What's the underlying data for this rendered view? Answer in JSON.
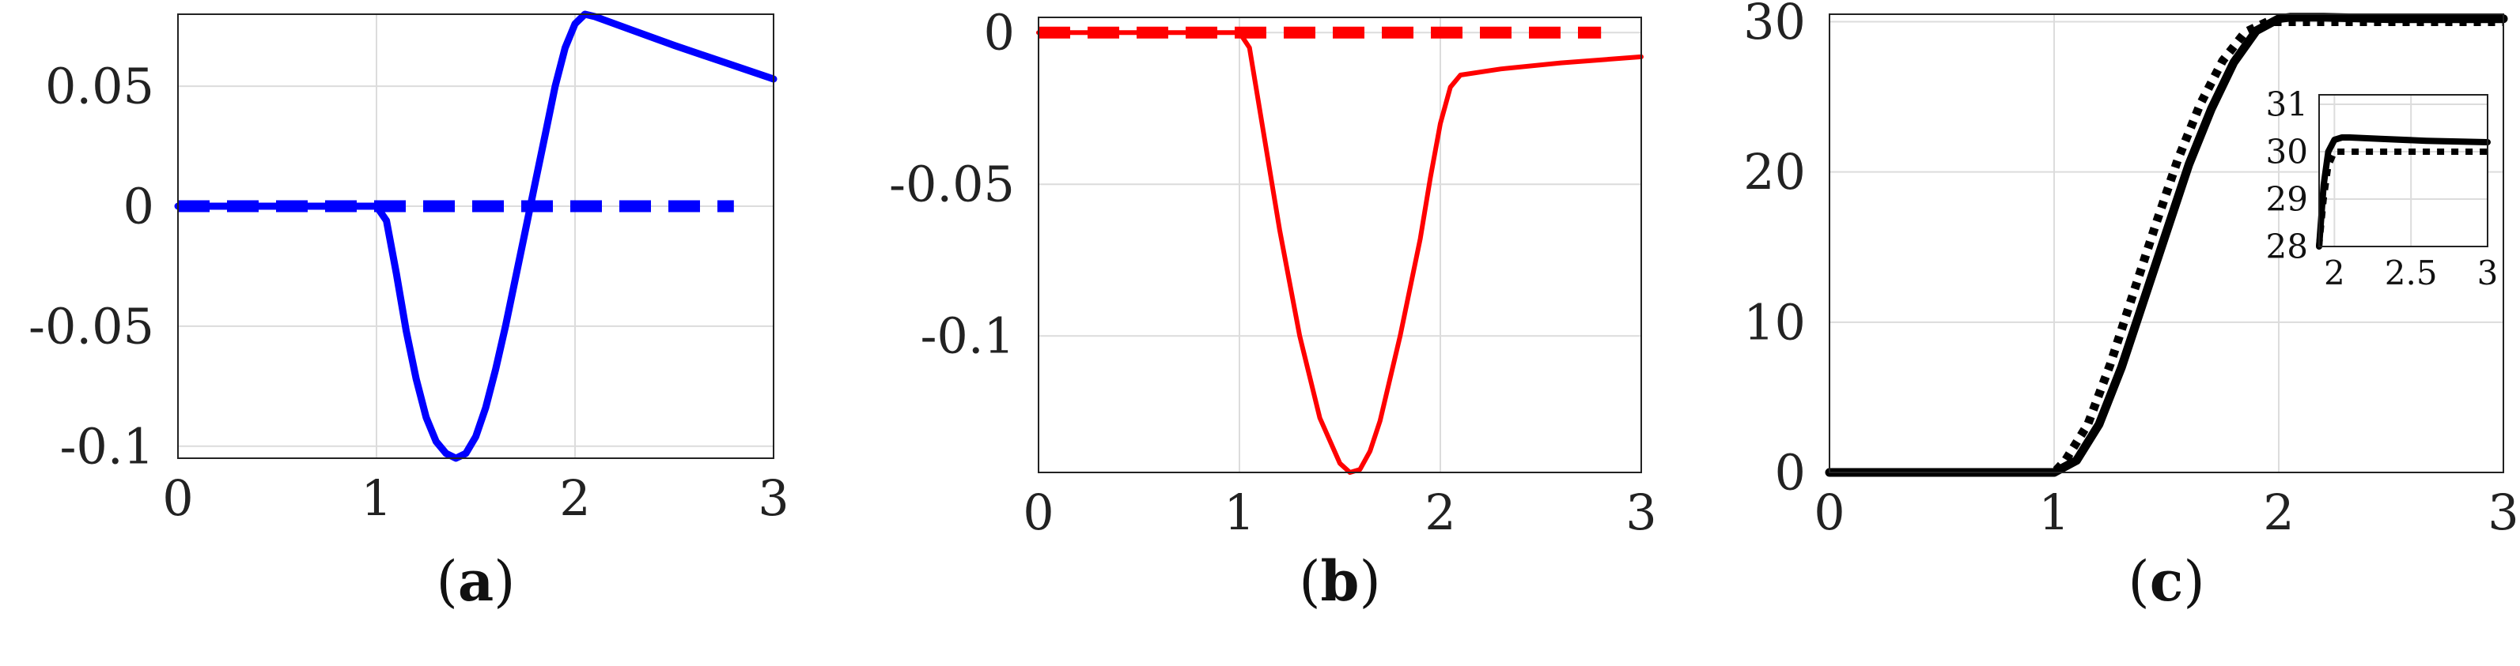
{
  "chart_data": [
    {
      "type": "line",
      "caption": {
        "open": "(",
        "letter": "a",
        "close": ")"
      },
      "xlim": [
        0,
        3
      ],
      "ylim": [
        -0.105,
        0.08
      ],
      "xticks": [
        0,
        1,
        2,
        3
      ],
      "xtick_labels": [
        "0",
        "1",
        "2",
        "3"
      ],
      "yticks": [
        -0.1,
        -0.05,
        0,
        0.05
      ],
      "ytick_labels": [
        "-0.1",
        "-0.05",
        "0",
        "0.05"
      ],
      "grid": true,
      "series": [
        {
          "style": "solid",
          "color": "#0000ff",
          "x": [
            0,
            0.5,
            1.0,
            1.05,
            1.1,
            1.15,
            1.2,
            1.25,
            1.3,
            1.35,
            1.4,
            1.45,
            1.5,
            1.55,
            1.6,
            1.65,
            1.7,
            1.75,
            1.8,
            1.85,
            1.9,
            1.95,
            2.0,
            2.05,
            2.1,
            2.3,
            2.5,
            2.75,
            3.0
          ],
          "y": [
            0,
            0,
            0,
            -0.006,
            -0.028,
            -0.052,
            -0.072,
            -0.088,
            -0.098,
            -0.103,
            -0.105,
            -0.103,
            -0.096,
            -0.084,
            -0.068,
            -0.05,
            -0.03,
            -0.01,
            0.01,
            0.03,
            0.05,
            0.066,
            0.076,
            0.08,
            0.079,
            0.073,
            0.067,
            0.06,
            0.053
          ]
        },
        {
          "style": "dashed",
          "color": "#0000ff",
          "x": [
            0,
            2.8
          ],
          "y": [
            0,
            0
          ]
        }
      ]
    },
    {
      "type": "line",
      "caption": {
        "open": "(",
        "letter": "b",
        "close": ")"
      },
      "xlim": [
        0,
        3
      ],
      "ylim": [
        -0.145,
        0.005
      ],
      "xticks": [
        0,
        1,
        2,
        3
      ],
      "xtick_labels": [
        "0",
        "1",
        "2",
        "3"
      ],
      "yticks": [
        -0.1,
        -0.05,
        0
      ],
      "ytick_labels": [
        "-0.1",
        "-0.05",
        "0"
      ],
      "grid": true,
      "series": [
        {
          "style": "solid",
          "color": "#ff0000",
          "x": [
            0,
            0.5,
            1.0,
            1.05,
            1.1,
            1.2,
            1.3,
            1.4,
            1.5,
            1.55,
            1.6,
            1.65,
            1.7,
            1.8,
            1.9,
            1.95,
            2.0,
            2.05,
            2.1,
            2.3,
            2.6,
            3.0
          ],
          "y": [
            0,
            0,
            0,
            -0.005,
            -0.025,
            -0.065,
            -0.1,
            -0.127,
            -0.142,
            -0.145,
            -0.144,
            -0.138,
            -0.128,
            -0.1,
            -0.068,
            -0.048,
            -0.03,
            -0.018,
            -0.014,
            -0.012,
            -0.01,
            -0.008
          ]
        },
        {
          "style": "dashed",
          "color": "#ff0000",
          "x": [
            0,
            2.8
          ],
          "y": [
            0,
            0
          ]
        }
      ]
    },
    {
      "type": "line",
      "caption": {
        "open": "(",
        "letter": "c",
        "close": ")"
      },
      "xlim": [
        0,
        3
      ],
      "ylim": [
        0,
        30.5
      ],
      "xticks": [
        0,
        1,
        2,
        3
      ],
      "xtick_labels": [
        "0",
        "1",
        "2",
        "3"
      ],
      "yticks": [
        0,
        10,
        20,
        30
      ],
      "ytick_labels": [
        "0",
        "10",
        "20",
        "30"
      ],
      "grid": true,
      "series": [
        {
          "style": "solid",
          "color": "#000000",
          "x": [
            0,
            1.0,
            1.1,
            1.2,
            1.3,
            1.4,
            1.5,
            1.6,
            1.7,
            1.8,
            1.9,
            2.0,
            2.05,
            2.1,
            2.2,
            2.5,
            3.0
          ],
          "y": [
            0,
            0,
            0.8,
            3.2,
            7.0,
            11.5,
            16.0,
            20.5,
            24.2,
            27.3,
            29.4,
            30.2,
            30.3,
            30.3,
            30.3,
            30.2,
            30.2
          ]
        },
        {
          "style": "dotted",
          "color": "#000000",
          "x": [
            0,
            1.0,
            1.05,
            1.15,
            1.25,
            1.35,
            1.45,
            1.55,
            1.65,
            1.75,
            1.85,
            1.95,
            2.0,
            2.1,
            2.5,
            3.0
          ],
          "y": [
            0,
            0,
            0.8,
            3.2,
            7.2,
            11.8,
            16.4,
            20.8,
            24.5,
            27.4,
            29.3,
            30.0,
            30.0,
            30.0,
            30.0,
            30.0
          ]
        }
      ],
      "inset": {
        "xlim": [
          1.9,
          3
        ],
        "ylim": [
          28,
          31.2
        ],
        "xticks": [
          2,
          2.5,
          3
        ],
        "xtick_labels": [
          "2",
          "2.5",
          "3"
        ],
        "yticks": [
          28,
          29,
          30,
          31
        ],
        "ytick_labels": [
          "28",
          "29",
          "30",
          "31"
        ],
        "grid": true,
        "series": [
          {
            "style": "solid",
            "color": "#000000",
            "x": [
              1.9,
              1.93,
              1.96,
              2.0,
              2.05,
              2.1,
              2.3,
              2.6,
              3.0
            ],
            "y": [
              28,
              29.3,
              30.0,
              30.25,
              30.3,
              30.3,
              30.27,
              30.23,
              30.2
            ]
          },
          {
            "style": "dotted",
            "color": "#000000",
            "x": [
              1.9,
              1.93,
              1.96,
              2.0,
              2.05,
              2.5,
              3.0
            ],
            "y": [
              28,
              29.0,
              29.7,
              30.0,
              30.0,
              30.0,
              30.0
            ]
          }
        ]
      }
    }
  ]
}
